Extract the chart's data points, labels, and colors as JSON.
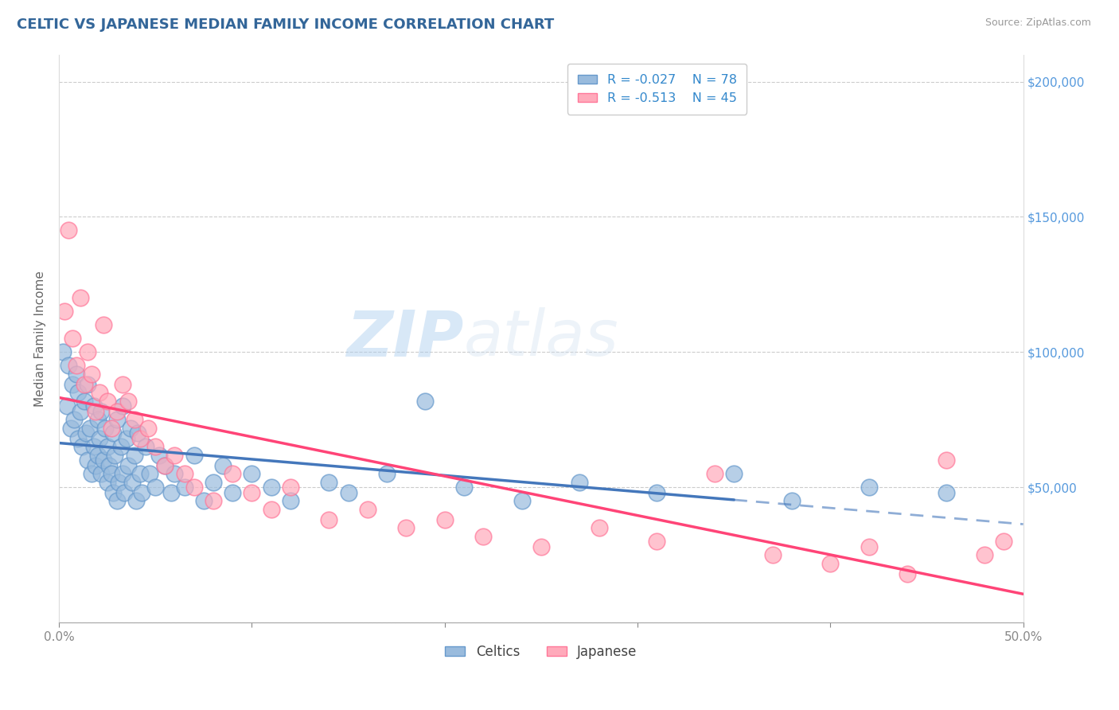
{
  "title": "CELTIC VS JAPANESE MEDIAN FAMILY INCOME CORRELATION CHART",
  "source_text": "Source: ZipAtlas.com",
  "ylabel": "Median Family Income",
  "xlim": [
    0.0,
    0.5
  ],
  "ylim": [
    0,
    210000
  ],
  "xticks": [
    0.0,
    0.1,
    0.2,
    0.3,
    0.4,
    0.5
  ],
  "xticklabels": [
    "0.0%",
    "",
    "",
    "",
    "",
    "50.0%"
  ],
  "yticks": [
    0,
    50000,
    100000,
    150000,
    200000
  ],
  "right_yticklabels": [
    "",
    "$50,000",
    "$100,000",
    "$150,000",
    "$200,000"
  ],
  "celtics_color": "#99BBDD",
  "celtics_edge": "#6699CC",
  "japanese_color": "#FFAABB",
  "japanese_edge": "#FF7799",
  "celtics_line_color": "#4477BB",
  "japanese_line_color": "#FF4477",
  "r_celtics": -0.027,
  "n_celtics": 78,
  "r_japanese": -0.513,
  "n_japanese": 45,
  "legend_labels": [
    "Celtics",
    "Japanese"
  ],
  "watermark": "ZIPatlas",
  "background_color": "#FFFFFF",
  "grid_color": "#CCCCCC",
  "title_color": "#336699",
  "title_fontsize": 13,
  "axis_label_color": "#666666",
  "tick_color": "#888888",
  "blue_line_solid_end": 0.35,
  "celtics_x": [
    0.002,
    0.004,
    0.005,
    0.006,
    0.007,
    0.008,
    0.009,
    0.01,
    0.01,
    0.011,
    0.012,
    0.013,
    0.014,
    0.015,
    0.015,
    0.016,
    0.017,
    0.018,
    0.018,
    0.019,
    0.02,
    0.02,
    0.021,
    0.022,
    0.022,
    0.023,
    0.024,
    0.025,
    0.025,
    0.026,
    0.027,
    0.028,
    0.028,
    0.029,
    0.03,
    0.03,
    0.031,
    0.032,
    0.033,
    0.033,
    0.034,
    0.035,
    0.036,
    0.037,
    0.038,
    0.039,
    0.04,
    0.041,
    0.042,
    0.043,
    0.045,
    0.047,
    0.05,
    0.052,
    0.055,
    0.058,
    0.06,
    0.065,
    0.07,
    0.075,
    0.08,
    0.085,
    0.09,
    0.1,
    0.11,
    0.12,
    0.14,
    0.15,
    0.17,
    0.19,
    0.21,
    0.24,
    0.27,
    0.31,
    0.35,
    0.38,
    0.42,
    0.46
  ],
  "celtics_y": [
    100000,
    80000,
    95000,
    72000,
    88000,
    75000,
    92000,
    68000,
    85000,
    78000,
    65000,
    82000,
    70000,
    60000,
    88000,
    72000,
    55000,
    65000,
    80000,
    58000,
    75000,
    62000,
    68000,
    55000,
    78000,
    60000,
    72000,
    52000,
    65000,
    58000,
    55000,
    48000,
    70000,
    62000,
    45000,
    75000,
    52000,
    65000,
    55000,
    80000,
    48000,
    68000,
    58000,
    72000,
    52000,
    62000,
    45000,
    70000,
    55000,
    48000,
    65000,
    55000,
    50000,
    62000,
    58000,
    48000,
    55000,
    50000,
    62000,
    45000,
    52000,
    58000,
    48000,
    55000,
    50000,
    45000,
    52000,
    48000,
    55000,
    82000,
    50000,
    45000,
    52000,
    48000,
    55000,
    45000,
    50000,
    48000
  ],
  "japanese_x": [
    0.003,
    0.005,
    0.007,
    0.009,
    0.011,
    0.013,
    0.015,
    0.017,
    0.019,
    0.021,
    0.023,
    0.025,
    0.027,
    0.03,
    0.033,
    0.036,
    0.039,
    0.042,
    0.046,
    0.05,
    0.055,
    0.06,
    0.065,
    0.07,
    0.08,
    0.09,
    0.1,
    0.11,
    0.12,
    0.14,
    0.16,
    0.18,
    0.2,
    0.22,
    0.25,
    0.28,
    0.31,
    0.34,
    0.37,
    0.4,
    0.42,
    0.44,
    0.46,
    0.48,
    0.49
  ],
  "japanese_y": [
    115000,
    145000,
    105000,
    95000,
    120000,
    88000,
    100000,
    92000,
    78000,
    85000,
    110000,
    82000,
    72000,
    78000,
    88000,
    82000,
    75000,
    68000,
    72000,
    65000,
    58000,
    62000,
    55000,
    50000,
    45000,
    55000,
    48000,
    42000,
    50000,
    38000,
    42000,
    35000,
    38000,
    32000,
    28000,
    35000,
    30000,
    55000,
    25000,
    22000,
    28000,
    18000,
    60000,
    25000,
    30000
  ]
}
